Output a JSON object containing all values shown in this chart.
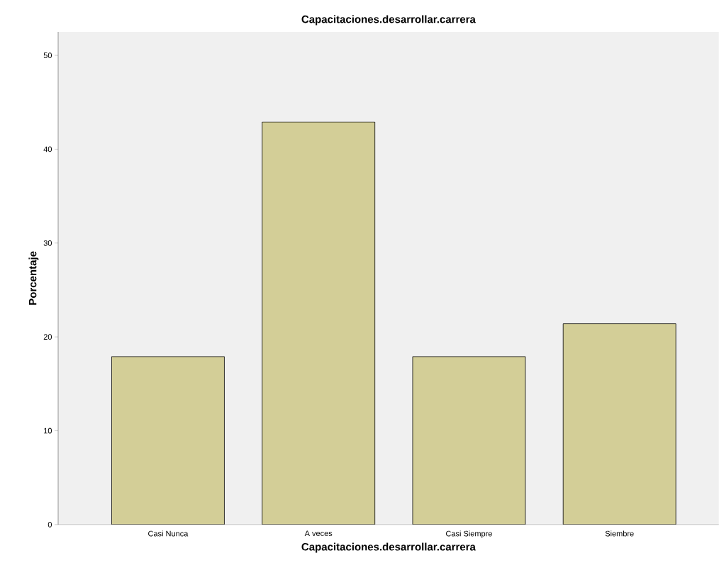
{
  "chart_data": {
    "type": "bar",
    "title": "Capacitaciones.desarrollar.carrera",
    "xlabel": "Capacitaciones.desarrollar.carrera",
    "ylabel": "Porcentaje",
    "categories": [
      "Casi Nunca",
      "A veces",
      "Casi Siempre",
      "Siembre"
    ],
    "values": [
      17.9,
      42.9,
      17.9,
      21.4
    ],
    "color": "#d3ce97",
    "ylim": [
      0,
      52.5
    ],
    "yticks": [
      0,
      10,
      20,
      30,
      40,
      50
    ],
    "grid": false
  }
}
